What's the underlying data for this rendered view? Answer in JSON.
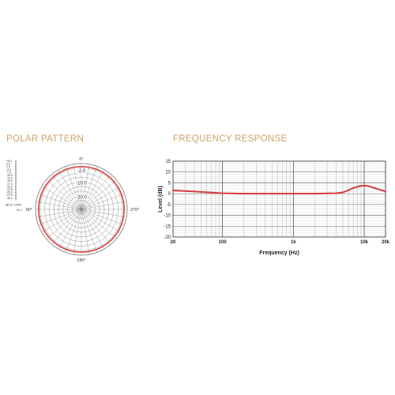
{
  "colors": {
    "accent": "#c9a46a",
    "trace": "#d63b3b",
    "grid": "#555555",
    "text": "#333333"
  },
  "polar": {
    "title": "POLAR PATTERN",
    "angle_labels": [
      "0°",
      "90°",
      "180°",
      "270°"
    ],
    "ring_labels": [
      "-2.0",
      "-10.0",
      "-20.0"
    ],
    "scale_labels": [
      "+5.0",
      "0.0",
      "2.5",
      "-5.0",
      "-7.5",
      "-10.0",
      "-12.5",
      "-15.0",
      "-17.5",
      "-20.0",
      "-22.5",
      "-25.0",
      "-27.5",
      "-30.0"
    ],
    "reference_text": [
      "dB rel. 1V/Pa",
      "-31.1"
    ]
  },
  "frequency": {
    "title": "FREQUENCY RESPONSE"
  },
  "chart_data": [
    {
      "type": "polar",
      "title": "POLAR PATTERN",
      "angles_deg": [
        0,
        90,
        180,
        270
      ],
      "series": [
        {
          "level_db": -2.0,
          "pattern": "omnidirectional"
        }
      ]
    },
    {
      "type": "line",
      "title": "FREQUENCY RESPONSE",
      "xlabel": "Frequency (Hz)",
      "ylabel": "Level (dB)",
      "xscale": "log",
      "xlim": [
        20,
        20000
      ],
      "ylim": [
        -20,
        15
      ],
      "x_ticks": [
        20,
        100,
        1000,
        10000,
        20000
      ],
      "x_tick_labels": [
        "20",
        "100",
        "1k",
        "10k",
        "20k"
      ],
      "y_ticks": [
        15,
        10,
        5,
        0,
        -5,
        -10,
        -15,
        -20
      ],
      "y_tick_labels": [
        "15",
        "10",
        "5",
        "0",
        "-5",
        "-10",
        "-15",
        "-20"
      ],
      "grid": true,
      "series": [
        {
          "x": [
            20,
            40,
            70,
            100,
            200,
            500,
            1000,
            2000,
            4000,
            5000,
            6000,
            7000,
            8000,
            9000,
            10000,
            11000,
            12000,
            14000,
            16000,
            18000,
            20000
          ],
          "y": [
            1.5,
            1.0,
            0.5,
            0.2,
            0.0,
            0.0,
            0.0,
            0.0,
            0.2,
            0.6,
            1.6,
            2.6,
            3.2,
            3.6,
            3.7,
            3.6,
            3.3,
            2.6,
            2.0,
            1.5,
            1.0
          ]
        }
      ]
    }
  ]
}
